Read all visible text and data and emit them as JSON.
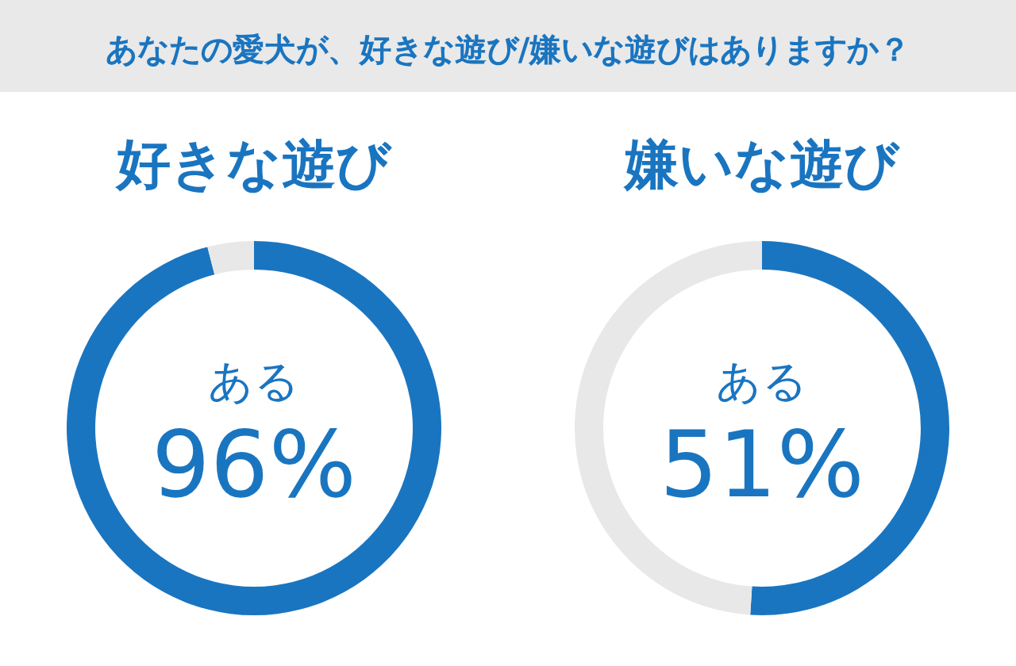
{
  "chart_data": [
    {
      "type": "other",
      "title": "あなたの愛犬が、好きな遊び/嫌いな遊びはありますか？"
    },
    {
      "type": "donut",
      "title": "好きな遊び",
      "categories": [
        "ある",
        null
      ],
      "values": [
        96,
        4
      ],
      "colors": [
        "#1a75c0",
        "#e8e8e8"
      ],
      "value_labels": [
        "96%",
        null
      ]
    },
    {
      "type": "donut",
      "title": "嫌いな遊び",
      "categories": [
        "ある",
        null
      ],
      "values": [
        51,
        49
      ],
      "colors": [
        "#1a75c0",
        "#e8e8e8"
      ],
      "value_labels": [
        "51%",
        null
      ]
    }
  ]
}
